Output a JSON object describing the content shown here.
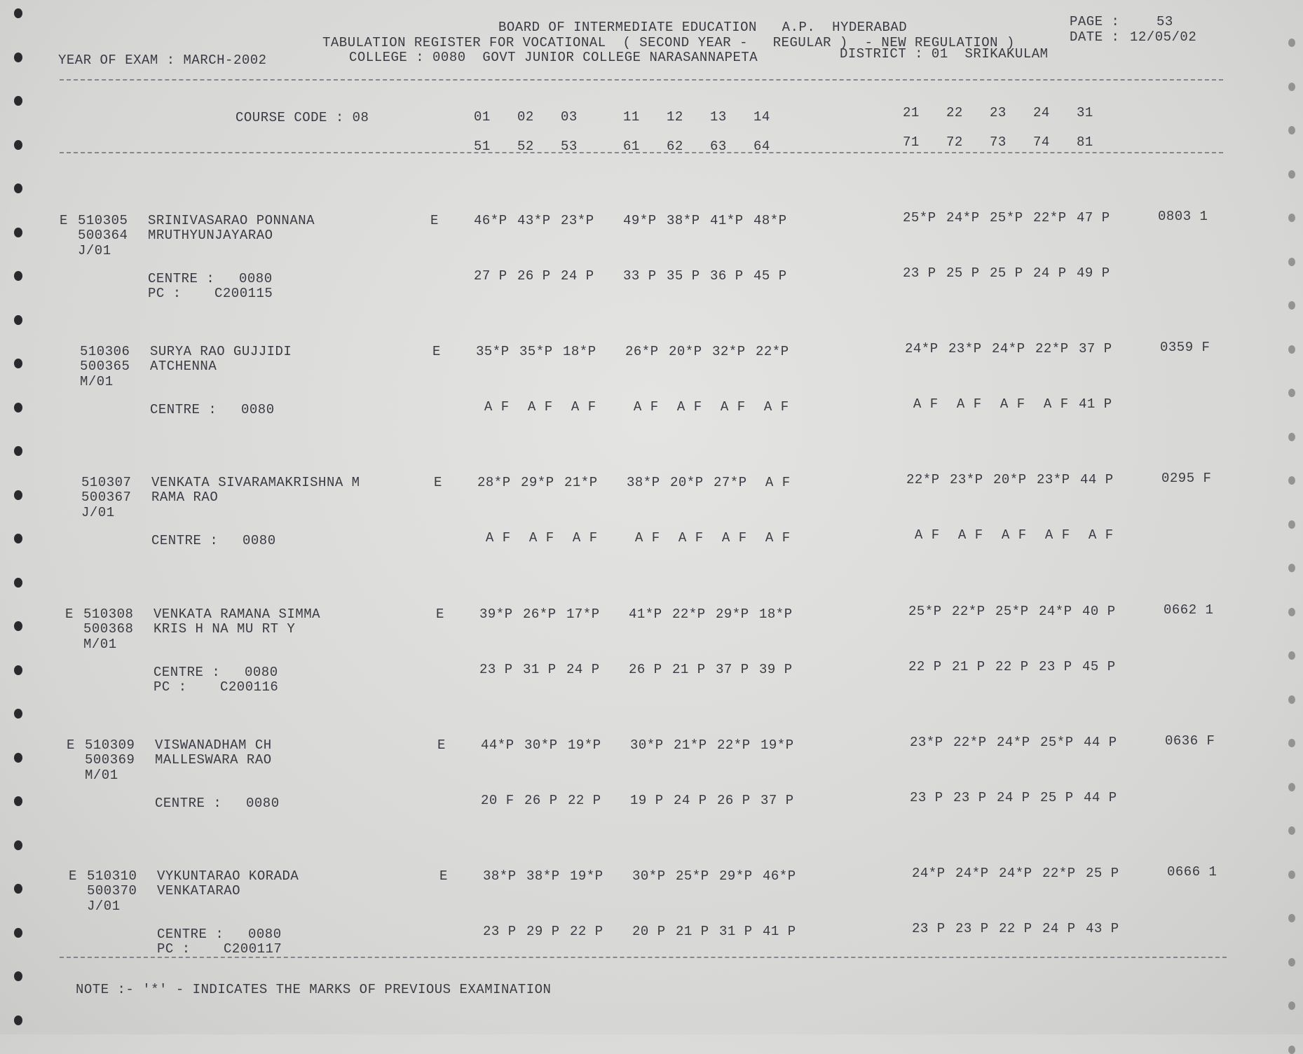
{
  "header": {
    "board": "BOARD OF INTERMEDIATE EDUCATION   A.P.  HYDERABAD",
    "page_label": "PAGE :",
    "page_value": "53",
    "register": "TABULATION REGISTER FOR VOCATIONAL  ( SECOND YEAR -   REGULAR )  - NEW REGULATION )",
    "date_label": "DATE :",
    "date_value": "12/05/02",
    "year_of_exam": "YEAR OF EXAM : MARCH-2002",
    "college": "COLLEGE : 0080  GOVT JUNIOR COLLEGE NARASANNAPETA",
    "district": "DISTRICT : 01  SRIKAKULAM"
  },
  "columns": {
    "course_code": "COURSE CODE : 08",
    "row1": [
      [
        "01",
        "02",
        "03"
      ],
      [
        "11",
        "12",
        "13",
        "14"
      ],
      [
        "21",
        "22",
        "23",
        "24",
        "31"
      ]
    ],
    "row2": [
      [
        "51",
        "52",
        "53"
      ],
      [
        "61",
        "62",
        "63",
        "64"
      ],
      [
        "71",
        "72",
        "73",
        "74",
        "81"
      ]
    ]
  },
  "centre_label": "CENTRE :",
  "pc_label": "PC :",
  "records": [
    {
      "prefix": "E",
      "roll": "510305",
      "name": "SRINIVASARAO PONNANA",
      "roll2": "500364",
      "name2": "MRUTHYUNJAYARAO",
      "code": "J/01",
      "medium": "E",
      "marks": [
        [
          "46*P",
          "43*P",
          "23*P"
        ],
        [
          "49*P",
          "38*P",
          "41*P",
          "48*P"
        ],
        [
          "25*P",
          "24*P",
          "25*P",
          "22*P",
          "47 P"
        ]
      ],
      "result": "0803 1",
      "marks2": [
        [
          "27 P",
          "26 P",
          "24 P"
        ],
        [
          "33 P",
          "35 P",
          "36 P",
          "45 P"
        ],
        [
          "23 P",
          "25 P",
          "25 P",
          "24 P",
          "49 P"
        ]
      ],
      "centre": "0080",
      "pc": "C200115"
    },
    {
      "prefix": "",
      "roll": "510306",
      "name": "SURYA RAO GUJJIDI",
      "roll2": "500365",
      "name2": "ATCHENNA",
      "code": "M/01",
      "medium": "E",
      "marks": [
        [
          "35*P",
          "35*P",
          "18*P"
        ],
        [
          "26*P",
          "20*P",
          "32*P",
          "22*P"
        ],
        [
          "24*P",
          "23*P",
          "24*P",
          "22*P",
          "37 P"
        ]
      ],
      "result": "0359 F",
      "marks2": [
        [
          " A F",
          " A F",
          " A F"
        ],
        [
          " A F",
          " A F",
          " A F",
          " A F"
        ],
        [
          " A F",
          " A F",
          " A F",
          " A F",
          "41 P"
        ]
      ],
      "centre": "0080",
      "pc": ""
    },
    {
      "prefix": "",
      "roll": "510307",
      "name": "VENKATA SIVARAMAKRISHNA M",
      "roll2": "500367",
      "name2": "RAMA RAO",
      "code": "J/01",
      "medium": "E",
      "marks": [
        [
          "28*P",
          "29*P",
          "21*P"
        ],
        [
          "38*P",
          "20*P",
          "27*P",
          " A F"
        ],
        [
          "22*P",
          "23*P",
          "20*P",
          "23*P",
          "44 P"
        ]
      ],
      "result": "0295 F",
      "marks2": [
        [
          " A F",
          " A F",
          " A F"
        ],
        [
          " A F",
          " A F",
          " A F",
          " A F"
        ],
        [
          " A F",
          " A F",
          " A F",
          " A F",
          " A F"
        ]
      ],
      "centre": "0080",
      "pc": ""
    },
    {
      "prefix": "E",
      "roll": "510308",
      "name": "VENKATA RAMANA SIMMA",
      "roll2": "500368",
      "name2": "KRIS H NA MU RT Y",
      "code": "M/01",
      "medium": "E",
      "marks": [
        [
          "39*P",
          "26*P",
          "17*P"
        ],
        [
          "41*P",
          "22*P",
          "29*P",
          "18*P"
        ],
        [
          "25*P",
          "22*P",
          "25*P",
          "24*P",
          "40 P"
        ]
      ],
      "result": "0662 1",
      "marks2": [
        [
          "23 P",
          "31 P",
          "24 P"
        ],
        [
          "26 P",
          "21 P",
          "37 P",
          "39 P"
        ],
        [
          "22 P",
          "21 P",
          "22 P",
          "23 P",
          "45 P"
        ]
      ],
      "centre": "0080",
      "pc": "C200116"
    },
    {
      "prefix": "E",
      "roll": "510309",
      "name": "VISWANADHAM CH",
      "roll2": "500369",
      "name2": "MALLESWARA RAO",
      "code": "M/01",
      "medium": "E",
      "marks": [
        [
          "44*P",
          "30*P",
          "19*P"
        ],
        [
          "30*P",
          "21*P",
          "22*P",
          "19*P"
        ],
        [
          "23*P",
          "22*P",
          "24*P",
          "25*P",
          "44 P"
        ]
      ],
      "result": "0636 F",
      "marks2": [
        [
          "20 F",
          "26 P",
          "22 P"
        ],
        [
          "19 P",
          "24 P",
          "26 P",
          "37 P"
        ],
        [
          "23 P",
          "23 P",
          "24 P",
          "25 P",
          "44 P"
        ]
      ],
      "centre": "0080",
      "pc": ""
    },
    {
      "prefix": "E",
      "roll": "510310",
      "name": "VYKUNTARAO KORADA",
      "roll2": "500370",
      "name2": "VENKATARAO",
      "code": "J/01",
      "medium": "E",
      "marks": [
        [
          "38*P",
          "38*P",
          "19*P"
        ],
        [
          "30*P",
          "25*P",
          "29*P",
          "46*P"
        ],
        [
          "24*P",
          "24*P",
          "24*P",
          "22*P",
          "25 P"
        ]
      ],
      "result": "0666 1",
      "marks2": [
        [
          "23 P",
          "29 P",
          "22 P"
        ],
        [
          "20 P",
          "21 P",
          "31 P",
          "41 P"
        ],
        [
          "23 P",
          "23 P",
          "22 P",
          "24 P",
          "43 P"
        ]
      ],
      "centre": "0080",
      "pc": "C200117"
    }
  ],
  "note": "NOTE :- '*' - INDICATES THE MARKS OF PREVIOUS EXAMINATION"
}
